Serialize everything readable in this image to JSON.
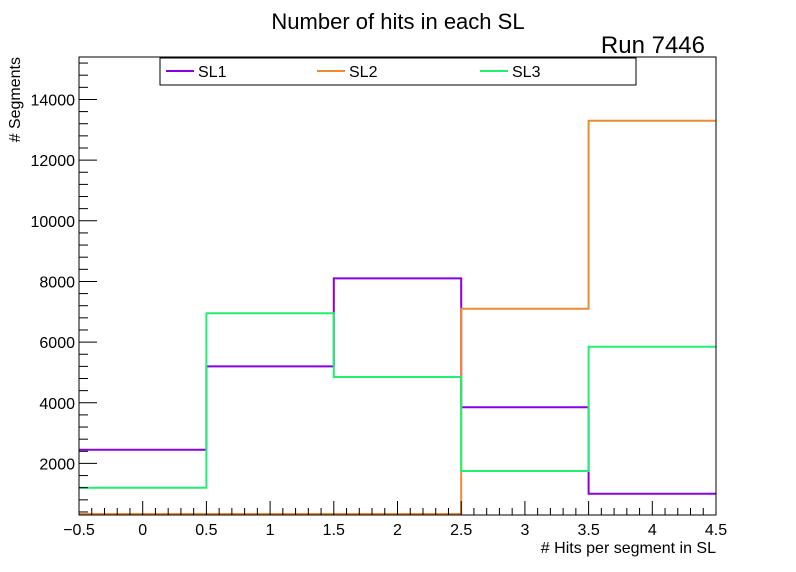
{
  "chart_data": {
    "type": "histogram-step",
    "title": "Number of hits in each SL",
    "annotation": "Run 7446",
    "xlabel": "# Hits per segment in SL",
    "ylabel": "# Segments",
    "xlim": [
      -0.5,
      4.5
    ],
    "ylim": [
      300,
      15400
    ],
    "bin_edges": [
      -0.5,
      0.5,
      1.5,
      2.5,
      3.5,
      4.5
    ],
    "x_ticks": [
      -0.5,
      0,
      0.5,
      1,
      1.5,
      2,
      2.5,
      3,
      3.5,
      4,
      4.5
    ],
    "x_tick_labels": [
      "−0.5",
      "0",
      "0.5",
      "1",
      "1.5",
      "2",
      "2.5",
      "3",
      "3.5",
      "4",
      "4.5"
    ],
    "y_ticks": [
      2000,
      4000,
      6000,
      8000,
      10000,
      12000,
      14000
    ],
    "y_tick_labels": [
      "2000",
      "4000",
      "6000",
      "8000",
      "10000",
      "12000",
      "14000"
    ],
    "legend_position": "top",
    "series": [
      {
        "name": "SL1",
        "color": "#8800e0",
        "values": [
          2450,
          5200,
          8100,
          3850,
          1000
        ]
      },
      {
        "name": "SL2",
        "color": "#f08a30",
        "values": [
          0,
          0,
          0,
          7100,
          13300
        ]
      },
      {
        "name": "SL3",
        "color": "#20f070",
        "values": [
          1200,
          6950,
          4850,
          1750,
          5850
        ]
      }
    ]
  }
}
